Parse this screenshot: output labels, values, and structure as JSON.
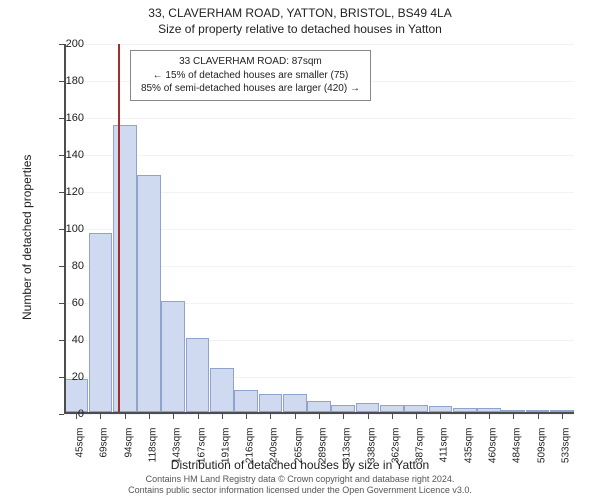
{
  "title": "33, CLAVERHAM ROAD, YATTON, BRISTOL, BS49 4LA",
  "subtitle": "Size of property relative to detached houses in Yatton",
  "ylabel": "Number of detached properties",
  "xlabel": "Distribution of detached houses by size in Yatton",
  "footer_line1": "Contains HM Land Registry data © Crown copyright and database right 2024.",
  "footer_line2": "Contains public sector information licensed under the Open Government Licence v3.0.",
  "chart": {
    "type": "histogram",
    "ylim": [
      0,
      200
    ],
    "ytick_step": 20,
    "yticks": [
      0,
      20,
      40,
      60,
      80,
      100,
      120,
      140,
      160,
      180,
      200
    ],
    "bar_fill": "#cfd9ef",
    "bar_stroke": "#8fa3cd",
    "grid_color": "#f2f3f7",
    "axis_color": "#4d4d4d",
    "background_color": "#ffffff",
    "refline_color": "#a03030",
    "refline_value": 87,
    "x_categories": [
      "45sqm",
      "69sqm",
      "94sqm",
      "118sqm",
      "143sqm",
      "167sqm",
      "191sqm",
      "216sqm",
      "240sqm",
      "265sqm",
      "289sqm",
      "313sqm",
      "338sqm",
      "362sqm",
      "387sqm",
      "411sqm",
      "435sqm",
      "460sqm",
      "484sqm",
      "509sqm",
      "533sqm"
    ],
    "x_numeric": [
      45,
      69,
      94,
      118,
      143,
      167,
      191,
      216,
      240,
      265,
      289,
      313,
      338,
      362,
      387,
      411,
      435,
      460,
      484,
      509,
      533
    ],
    "values": [
      18,
      97,
      155,
      128,
      60,
      40,
      24,
      12,
      10,
      10,
      6,
      4,
      5,
      4,
      4,
      3,
      2,
      2,
      1,
      1,
      1
    ]
  },
  "callout": {
    "line1": "33 CLAVERHAM ROAD: 87sqm",
    "line2": "← 15% of detached houses are smaller (75)",
    "line3": "85% of semi-detached houses are larger (420) →"
  }
}
